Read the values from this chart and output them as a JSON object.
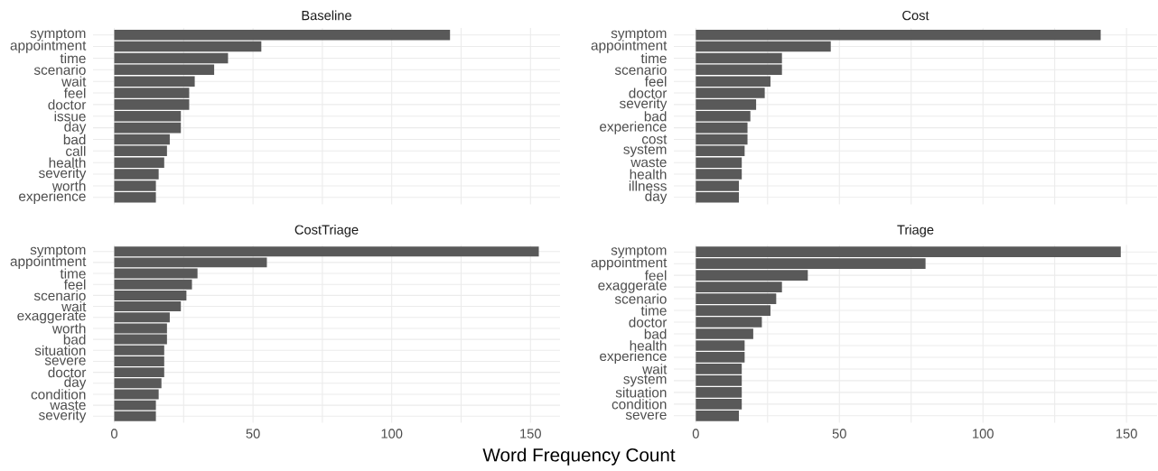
{
  "chart_data": [
    {
      "type": "bar",
      "orientation": "horizontal",
      "title": "Baseline",
      "color": "#595959",
      "grid": true,
      "tick_labels": "y",
      "categories": [
        "symptom",
        "appointment",
        "time",
        "scenario",
        "wait",
        "feel",
        "doctor",
        "issue",
        "day",
        "bad",
        "call",
        "health",
        "severity",
        "worth",
        "experience"
      ],
      "values": [
        121,
        53,
        41,
        36,
        29,
        27,
        27,
        24,
        24,
        20,
        19,
        18,
        16,
        15,
        15
      ],
      "xlim": [
        -7.65,
        160.65
      ],
      "xticks": [
        0,
        {
          "value": 25,
          "label": null
        },
        50,
        {
          "value": 75,
          "label": null
        },
        100,
        {
          "value": 125,
          "label": null
        },
        150
      ]
    },
    {
      "type": "bar",
      "orientation": "horizontal",
      "title": "Cost",
      "color": "#595959",
      "grid": true,
      "tick_labels": "y",
      "categories": [
        "symptom",
        "appointment",
        "time",
        "scenario",
        "feel",
        "doctor",
        "severity",
        "bad",
        "experience",
        "cost",
        "system",
        "waste",
        "health",
        "illness",
        "day"
      ],
      "values": [
        141,
        47,
        30,
        30,
        26,
        24,
        21,
        19,
        18,
        18,
        17,
        16,
        16,
        15,
        15
      ],
      "xlim": [
        -7.65,
        160.65
      ],
      "xticks": [
        0,
        {
          "value": 25,
          "label": null
        },
        50,
        {
          "value": 75,
          "label": null
        },
        100,
        {
          "value": 125,
          "label": null
        },
        150
      ]
    },
    {
      "type": "bar",
      "orientation": "horizontal",
      "title": "CostTriage",
      "color": "#595959",
      "grid": true,
      "xlabel": "Word Frequency Count",
      "categories": [
        "symptom",
        "appointment",
        "time",
        "feel",
        "scenario",
        "wait",
        "exaggerate",
        "worth",
        "bad",
        "situation",
        "severe",
        "doctor",
        "day",
        "condition",
        "waste",
        "severity"
      ],
      "values": [
        153,
        55,
        30,
        28,
        26,
        24,
        20,
        19,
        19,
        18,
        18,
        18,
        17,
        16,
        15,
        15
      ],
      "xlim": [
        -7.65,
        160.65
      ],
      "xticks": [
        0,
        {
          "value": 25,
          "label": null
        },
        50,
        {
          "value": 75,
          "label": null
        },
        100,
        {
          "value": 125,
          "label": null
        },
        150
      ]
    },
    {
      "type": "bar",
      "orientation": "horizontal",
      "title": "Triage",
      "color": "#595959",
      "grid": true,
      "categories": [
        "symptom",
        "appointment",
        "feel",
        "exaggerate",
        "scenario",
        "time",
        "doctor",
        "bad",
        "health",
        "experience",
        "wait",
        "system",
        "situation",
        "condition",
        "severe"
      ],
      "values": [
        148,
        80,
        39,
        30,
        28,
        26,
        23,
        20,
        17,
        17,
        16,
        16,
        16,
        16,
        15
      ],
      "xlim": [
        -7.65,
        160.65
      ],
      "xticks": [
        0,
        {
          "value": 25,
          "label": null
        },
        50,
        {
          "value": 75,
          "label": null
        },
        100,
        {
          "value": 125,
          "label": null
        },
        150
      ]
    }
  ]
}
